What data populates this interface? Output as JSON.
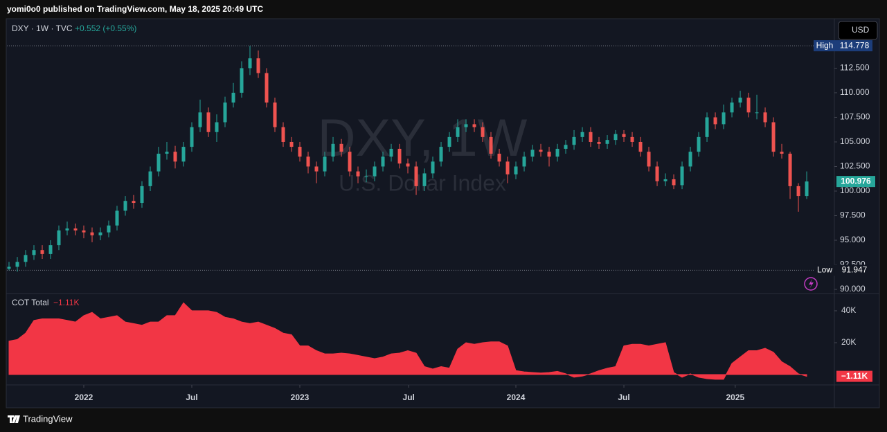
{
  "header": "yomi0o0 published on TradingView.com, May 18, 2025 20:49 UTC",
  "footer": "TradingView",
  "chart_data": [
    {
      "type": "candlestick",
      "title": "DXY · 1W · TVC",
      "change": "+0.552 (+0.55%)",
      "watermark": "DXY, 1W",
      "subtitle": "U.S. Dollar Index",
      "currency": "USD",
      "up_color": "#26a69a",
      "down_color": "#ef5350",
      "open": [
        92.1,
        92.3,
        92.8,
        93.5,
        94.0,
        93.6,
        94.5,
        96.0,
        96.2,
        96.0,
        95.8,
        95.5,
        95.8,
        96.5,
        98.0,
        99.0,
        98.8,
        100.5,
        102.0,
        103.8,
        104.0,
        103.0,
        104.5,
        106.5,
        108.0,
        106.0,
        107.0,
        109.0,
        110.0,
        112.5,
        113.5,
        112.0,
        109.0,
        106.5,
        105.0,
        104.5,
        103.5,
        102.5,
        102.0,
        103.5,
        104.8,
        104.0,
        102.0,
        101.5,
        101.5,
        102.5,
        103.5,
        104.3,
        102.8,
        102.5,
        100.5,
        101.8,
        103.0,
        104.5,
        105.5,
        106.5,
        106.8,
        106.5,
        105.5,
        103.8,
        103.0,
        101.7,
        102.5,
        103.5,
        104.2,
        104.0,
        103.5,
        104.3,
        104.7,
        105.5,
        106.0,
        105.0,
        104.8,
        105.2,
        105.8,
        105.5,
        105.0,
        104.0,
        102.5,
        101.0,
        101.2,
        100.6,
        102.5,
        104.0,
        105.5,
        107.5,
        106.8,
        108.0,
        109.0,
        109.5,
        108.0,
        108.0,
        107.0,
        104.0,
        103.8,
        100.5,
        99.5
      ],
      "high": [
        92.8,
        93.3,
        94.0,
        94.5,
        94.5,
        95.0,
        96.5,
        96.9,
        96.7,
        96.5,
        96.3,
        96.3,
        97.0,
        98.5,
        99.5,
        99.6,
        101.0,
        102.5,
        104.5,
        105.0,
        104.6,
        105.0,
        107.0,
        109.3,
        108.5,
        107.8,
        109.6,
        111.0,
        113.2,
        114.778,
        114.3,
        112.5,
        109.5,
        107.0,
        105.5,
        105.0,
        104.0,
        103.0,
        104.0,
        105.5,
        105.3,
        104.5,
        102.5,
        102.2,
        103.0,
        104.0,
        104.8,
        104.8,
        103.3,
        103.0,
        102.3,
        103.5,
        105.0,
        106.0,
        107.3,
        107.3,
        107.3,
        107.0,
        106.0,
        104.3,
        103.5,
        103.0,
        104.0,
        104.7,
        104.8,
        104.5,
        104.8,
        105.2,
        106.2,
        106.5,
        106.5,
        105.5,
        105.7,
        106.2,
        106.2,
        106.0,
        105.5,
        104.5,
        103.0,
        101.8,
        101.7,
        103.0,
        104.5,
        106.0,
        108.0,
        108.0,
        108.8,
        109.5,
        110.2,
        110.0,
        109.8,
        108.5,
        107.5,
        104.8,
        104.0,
        100.8,
        102.0
      ],
      "low": [
        91.947,
        91.8,
        92.3,
        93.0,
        93.1,
        93.1,
        94.0,
        95.5,
        95.5,
        95.2,
        94.8,
        95.0,
        95.3,
        96.0,
        97.5,
        98.2,
        98.3,
        100.0,
        101.5,
        103.2,
        102.3,
        102.5,
        104.0,
        106.0,
        105.5,
        105.0,
        106.5,
        108.5,
        109.5,
        111.8,
        111.5,
        108.5,
        106.0,
        104.5,
        104.0,
        103.0,
        101.8,
        100.8,
        101.5,
        103.0,
        103.5,
        101.5,
        100.8,
        100.9,
        101.0,
        102.0,
        103.0,
        102.3,
        101.8,
        99.6,
        100.0,
        101.3,
        102.5,
        104.0,
        105.0,
        106.0,
        106.0,
        105.0,
        103.3,
        102.5,
        100.8,
        101.2,
        102.0,
        103.0,
        103.5,
        102.5,
        103.0,
        103.8,
        104.2,
        105.0,
        104.5,
        104.3,
        104.3,
        104.7,
        105.0,
        104.5,
        103.5,
        102.0,
        100.5,
        100.5,
        100.2,
        100.2,
        102.0,
        103.5,
        105.0,
        106.3,
        106.3,
        107.5,
        108.5,
        107.5,
        107.3,
        106.5,
        103.5,
        103.3,
        99.2,
        97.9,
        99.2
      ],
      "close": [
        92.3,
        92.8,
        93.5,
        94.0,
        93.6,
        94.5,
        96.0,
        96.2,
        96.0,
        95.8,
        95.5,
        95.8,
        96.5,
        98.0,
        99.0,
        98.8,
        100.5,
        102.0,
        103.8,
        104.0,
        103.0,
        104.5,
        106.5,
        108.0,
        106.0,
        107.0,
        109.0,
        110.0,
        112.5,
        113.5,
        112.0,
        109.0,
        106.5,
        105.0,
        104.5,
        103.5,
        102.5,
        102.0,
        103.5,
        104.8,
        104.0,
        102.0,
        101.5,
        101.5,
        102.5,
        103.5,
        104.3,
        102.8,
        102.5,
        100.5,
        101.8,
        103.0,
        104.5,
        105.5,
        106.5,
        106.8,
        106.5,
        105.5,
        103.8,
        103.0,
        101.7,
        102.5,
        103.5,
        104.2,
        104.0,
        103.5,
        104.3,
        104.7,
        105.5,
        106.0,
        105.0,
        104.8,
        105.2,
        105.8,
        105.5,
        105.0,
        104.0,
        102.5,
        101.0,
        101.2,
        100.6,
        102.5,
        104.0,
        105.5,
        107.5,
        106.8,
        108.0,
        109.0,
        109.5,
        108.0,
        108.0,
        107.0,
        104.0,
        103.8,
        100.5,
        99.5,
        100.976
      ],
      "xlim": [
        -0.25,
        99.33
      ],
      "xticks": [
        {
          "value": 9,
          "label": "2022"
        },
        {
          "value": 22,
          "label": "Jul"
        },
        {
          "value": 35,
          "label": "2023"
        },
        {
          "value": 48.1,
          "label": "Jul"
        },
        {
          "value": 61,
          "label": "2024"
        },
        {
          "value": 74,
          "label": "Jul"
        },
        {
          "value": 87.4,
          "label": "2025"
        }
      ],
      "ylim": [
        89.65,
        117.46
      ],
      "yticks": [
        {
          "value": 90,
          "label": "90.000"
        },
        {
          "value": 92.5,
          "label": "92.500"
        },
        {
          "value": 95,
          "label": "95.000"
        },
        {
          "value": 97.5,
          "label": "97.500"
        },
        {
          "value": 100,
          "label": "100.000"
        },
        {
          "value": 102.5,
          "label": "102.500"
        },
        {
          "value": 105,
          "label": "105.000"
        },
        {
          "value": 107.5,
          "label": "107.500"
        },
        {
          "value": 110,
          "label": "110.000"
        },
        {
          "value": 112.5,
          "label": "112.500"
        }
      ],
      "high_marker": {
        "label": "High",
        "value": 114.778
      },
      "low_marker": {
        "label": "Low",
        "value": 91.947
      },
      "last_price": 100.976
    },
    {
      "type": "area",
      "title": "COT Total",
      "color": "#f23645",
      "values": [
        21000,
        22000,
        26000,
        34000,
        35000,
        35000,
        35000,
        34000,
        33000,
        37000,
        39000,
        35000,
        36000,
        37000,
        33000,
        32000,
        31000,
        33000,
        33000,
        37000,
        37000,
        45000,
        40000,
        40000,
        40000,
        39000,
        36000,
        35000,
        33000,
        32000,
        33000,
        31000,
        29000,
        26000,
        25000,
        18000,
        18000,
        15000,
        13000,
        13000,
        13500,
        13000,
        12000,
        11000,
        10000,
        11000,
        13000,
        13500,
        15000,
        13500,
        5000,
        3500,
        5000,
        4000,
        16000,
        20000,
        19000,
        20000,
        20500,
        20500,
        18000,
        2500,
        1700,
        1300,
        1000,
        1300,
        2000,
        500,
        -1700,
        -1000,
        500,
        2500,
        4000,
        5000,
        18000,
        19000,
        19000,
        18000,
        19000,
        20000,
        1300,
        -1700,
        500,
        -1700,
        -2600,
        -3000,
        -3000,
        7000,
        11000,
        15000,
        15000,
        16500,
        14000,
        8000,
        5000,
        500,
        -1110
      ],
      "last_value_label": "−1.11K",
      "xlim": [
        -0.25,
        99.33
      ],
      "ylim": [
        -20400,
        50400
      ],
      "yticks": [
        {
          "value": 20000,
          "label": "20K"
        },
        {
          "value": 40000,
          "label": "40K"
        }
      ]
    }
  ]
}
